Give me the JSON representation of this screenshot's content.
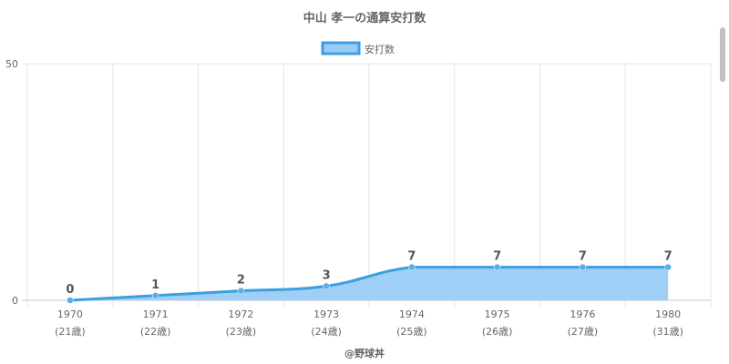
{
  "chart_data": {
    "type": "area",
    "title": "中山 孝一の通算安打数",
    "footer": "@野球丼",
    "categories": [
      "1970",
      "1971",
      "1972",
      "1973",
      "1974",
      "1975",
      "1976",
      "1980"
    ],
    "category_sublabels": [
      "(21歳)",
      "(22歳)",
      "(23歳)",
      "(24歳)",
      "(25歳)",
      "(26歳)",
      "(27歳)",
      "(31歳)"
    ],
    "series": [
      {
        "name": "安打数",
        "values": [
          0,
          1,
          2,
          3,
          7,
          7,
          7,
          7
        ]
      }
    ],
    "y_ticks": [
      "0",
      "50"
    ],
    "ylim": [
      0,
      50
    ],
    "grid": true,
    "legend_position": "top-center",
    "colors": {
      "line": "#3b9fe0",
      "fill": "#99ccf5",
      "point": "#5aaee8"
    }
  }
}
